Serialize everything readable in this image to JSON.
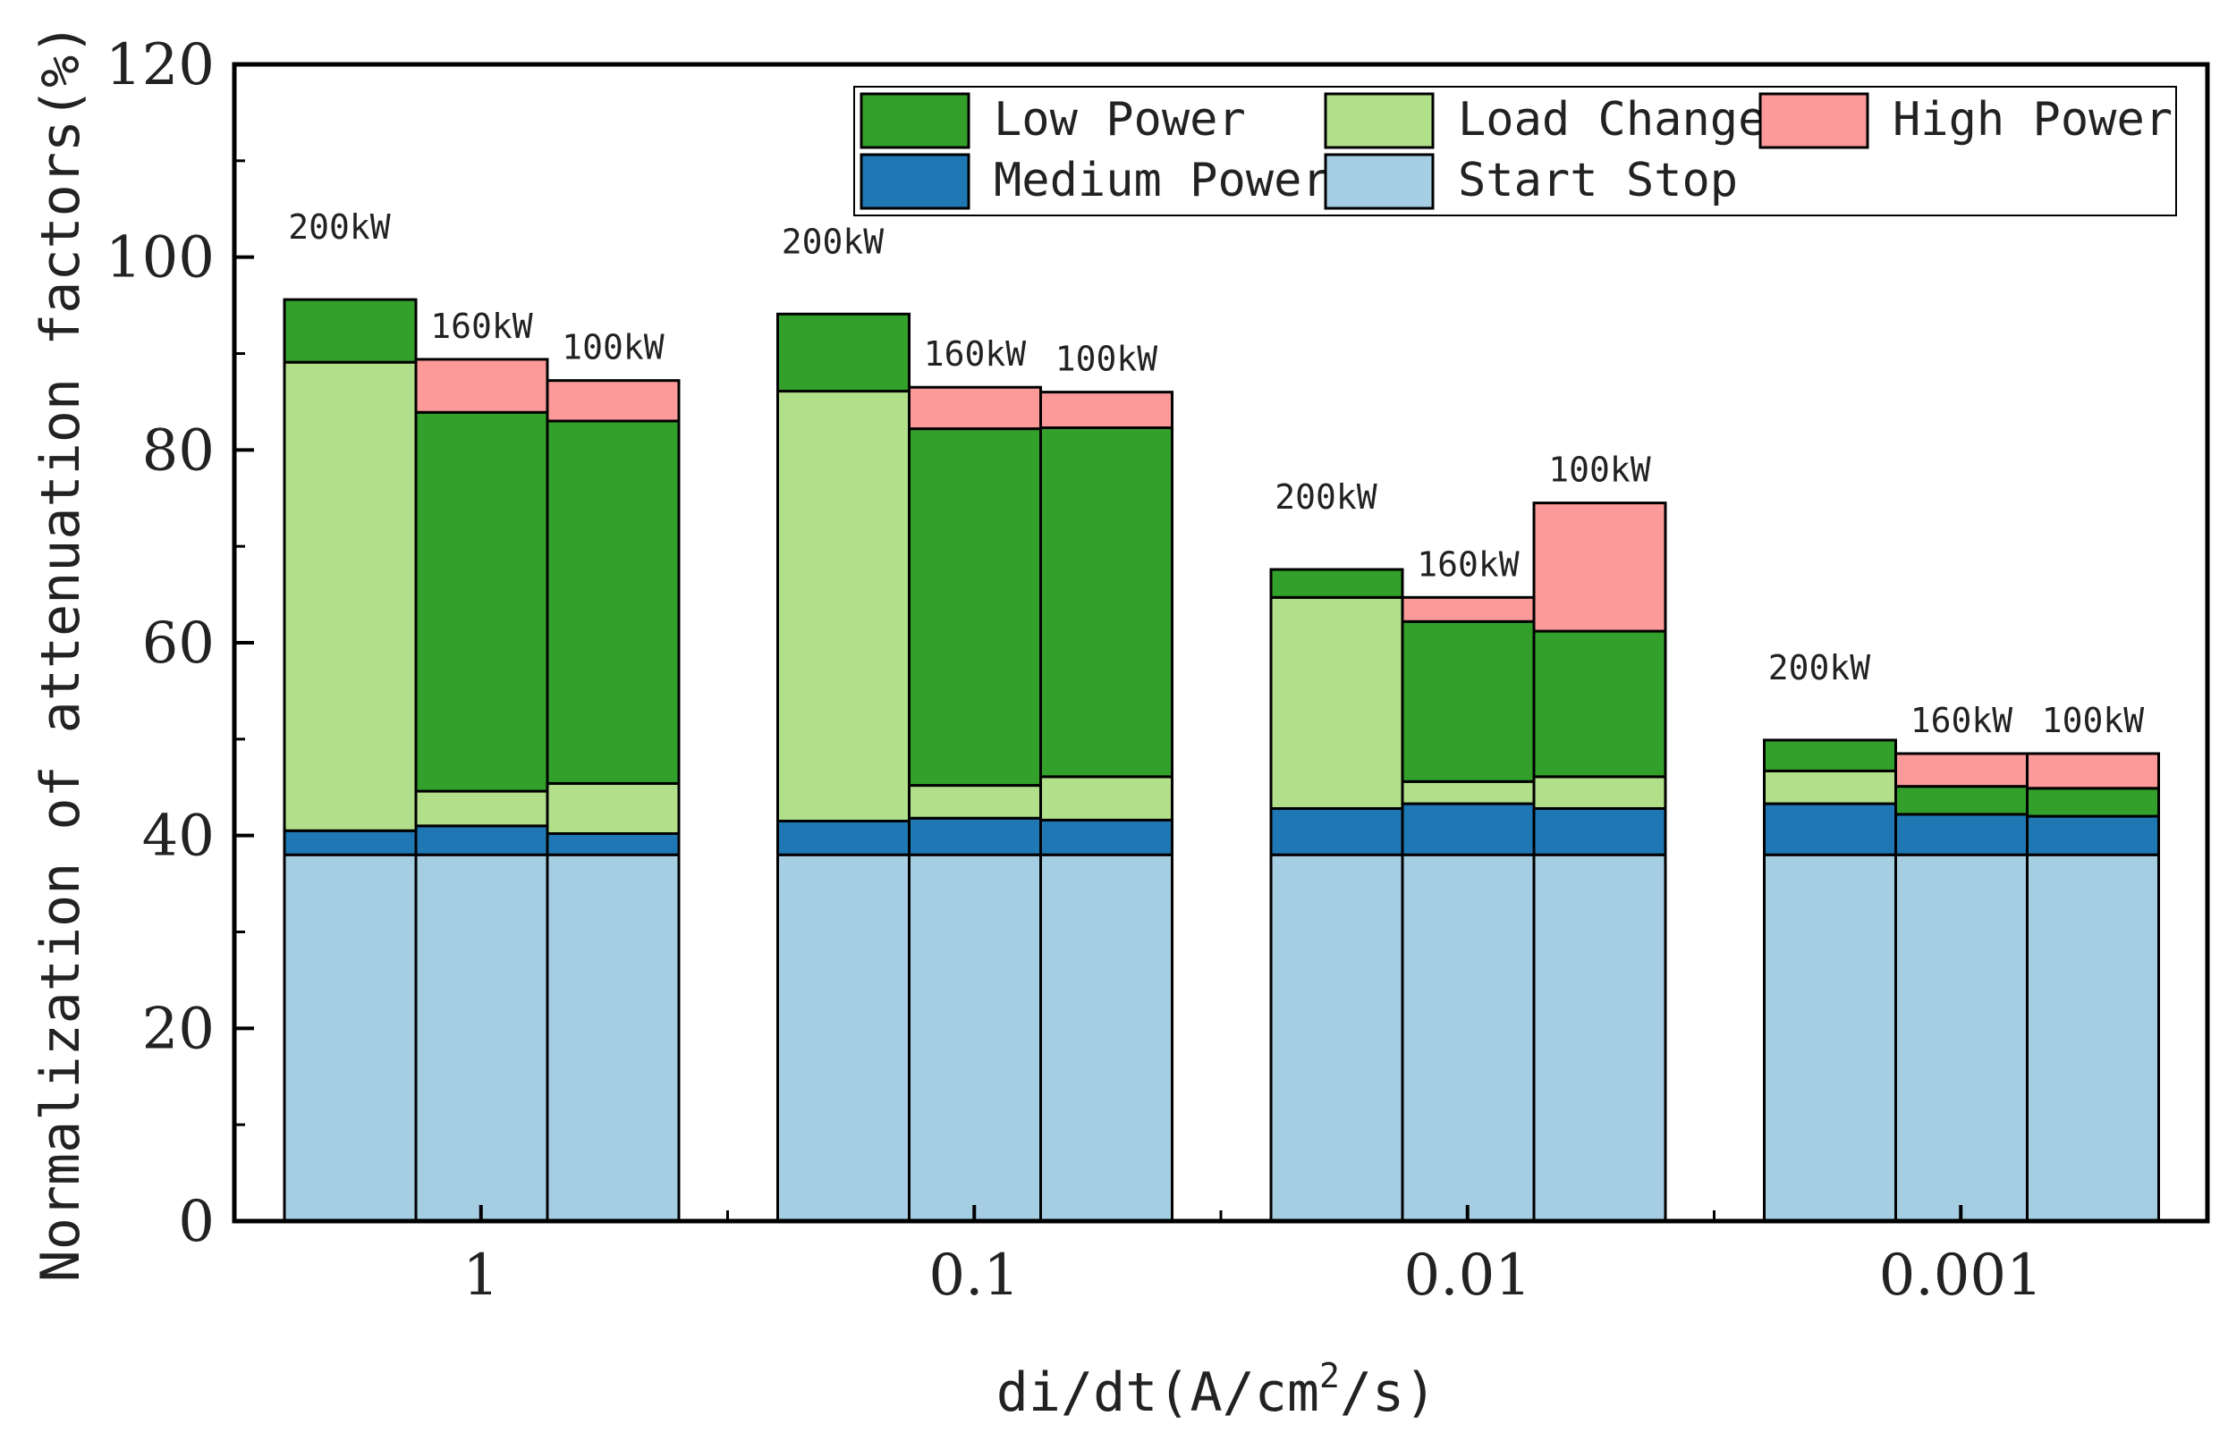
{
  "chart_data": {
    "type": "bar",
    "stacked": true,
    "ylabel": "Normalization of attenuation factors(%)",
    "xlabel_parts": {
      "main": "di/dt(A/cm",
      "sup": "2",
      "tail": "/s)"
    },
    "ylim": [
      0,
      120
    ],
    "yticks": [
      0,
      20,
      40,
      60,
      80,
      100,
      120
    ],
    "groups": [
      "1",
      "0.1",
      "0.01",
      "0.001"
    ],
    "bar_labels": [
      "200kW",
      "160kW",
      "100kW"
    ],
    "series": [
      {
        "name": "Start Stop",
        "color": "#a6cee3",
        "values": [
          [
            38,
            38,
            38
          ],
          [
            38,
            38,
            38
          ],
          [
            38,
            38,
            38
          ],
          [
            38,
            38,
            38
          ]
        ]
      },
      {
        "name": "Medium Power",
        "color": "#1f78b4",
        "values": [
          [
            2.5,
            3,
            2.2
          ],
          [
            3.5,
            3.8,
            3.6
          ],
          [
            4.8,
            5.3,
            4.8
          ],
          [
            5.3,
            4.2,
            4.0
          ]
        ]
      },
      {
        "name": "Load Change",
        "color": "#b2df8a",
        "values": [
          [
            48.6,
            3.6,
            5.2
          ],
          [
            44.6,
            3.4,
            4.5
          ],
          [
            21.9,
            2.3,
            3.3
          ],
          [
            3.4,
            0,
            0
          ]
        ]
      },
      {
        "name": "Low Power",
        "color": "#33a02c",
        "values": [
          [
            6.5,
            39.3,
            37.6
          ],
          [
            8.0,
            37.0,
            36.2
          ],
          [
            2.9,
            16.6,
            15.1
          ],
          [
            3.2,
            2.9,
            2.9
          ]
        ]
      },
      {
        "name": "High Power",
        "color": "#fb9a99",
        "values": [
          [
            0,
            5.5,
            4.2
          ],
          [
            0,
            4.3,
            3.7
          ],
          [
            0,
            2.5,
            13.3
          ],
          [
            0,
            3.4,
            3.6
          ]
        ]
      }
    ],
    "legend": {
      "position": "top-right",
      "rows": [
        [
          "Low Power",
          "Load Change",
          "High Power"
        ],
        [
          "Medium Power",
          "Start Stop"
        ]
      ]
    },
    "axis_color": "#000000"
  }
}
